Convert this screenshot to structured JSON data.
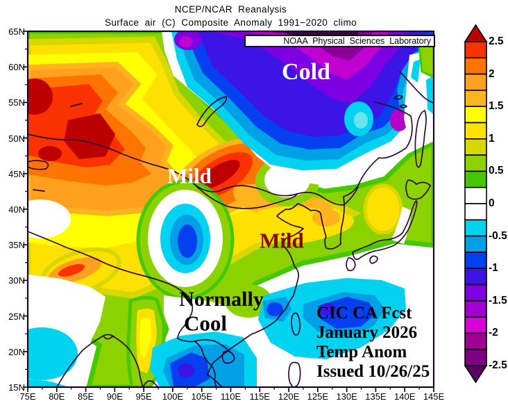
{
  "titles": {
    "line1": "NCEP/NCAR  Reanalysis",
    "line2": "Surface  air  (C)  Composite  Anomaly  1991−2020  climo"
  },
  "credit_box": {
    "text": "NOAA  Physical  Sciences  Laboratory"
  },
  "map_labels": {
    "cold": {
      "text": "Cold",
      "color": "#ffffff"
    },
    "mild_nw": {
      "text": "Mild",
      "color": "#ffffff"
    },
    "mild_east": {
      "text": "Mild",
      "color": "#8b0000"
    },
    "normally": {
      "text": "Normally",
      "color": "#000000"
    },
    "cool": {
      "text": "Cool",
      "color": "#000000"
    }
  },
  "forecast_note": {
    "line1": "CIC CA Fcst",
    "line2": "January 2026",
    "line3": "Temp Anom",
    "line4": "Issued 10/26/25"
  },
  "axes": {
    "lat": [
      "65N",
      "60N",
      "55N",
      "50N",
      "45N",
      "40N",
      "35N",
      "30N",
      "25N",
      "20N",
      "15N"
    ],
    "lon": [
      "75E",
      "80E",
      "85E",
      "90E",
      "95E",
      "100E",
      "105E",
      "110E",
      "115E",
      "120E",
      "125E",
      "130E",
      "135E",
      "140E",
      "145E"
    ]
  },
  "colorbar": {
    "units": "C",
    "tick_labels": [
      "2.5",
      "2",
      "1.5",
      "1",
      "0.5",
      "0",
      "-0.5",
      "-1",
      "-1.5",
      "-2",
      "-2.5"
    ],
    "segment_colors": [
      "#fa3200",
      "#ff7300",
      "#ffa01e",
      "#ffb41e",
      "#ffff00",
      "#ffe100",
      "#d8d800",
      "#8cd200",
      "#46c800",
      "#ffffff",
      "#ffffff",
      "#00d2f0",
      "#00a0e6",
      "#0540f0",
      "#3c14e6",
      "#7c00e2",
      "#a000d2",
      "#d800d8",
      "#a00096",
      "#7d0082"
    ],
    "arrow_top_color": "#bc0000",
    "arrow_bottom_color": "#5a0060"
  },
  "palette": {
    "warm_extreme": "#bc0000",
    "cold_extreme": "#3a0840",
    "coastline": "#30083c",
    "frame": "#1a0526",
    "near_zero": "#ffffff"
  }
}
